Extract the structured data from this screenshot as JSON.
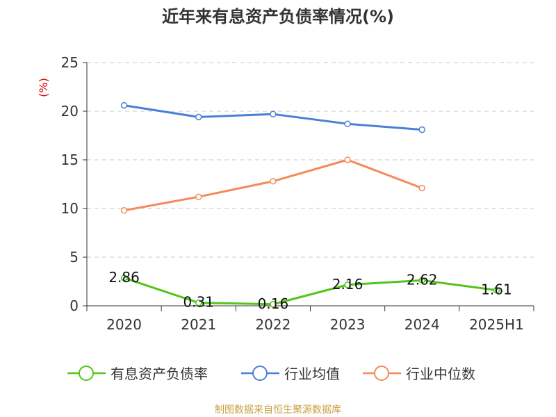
{
  "chart_data": {
    "type": "line",
    "title": "近年来有息资产负债率情况(%)",
    "unit_label": "(%)",
    "categories": [
      "2020",
      "2021",
      "2022",
      "2023",
      "2024",
      "2025H1"
    ],
    "ylim": [
      0,
      25
    ],
    "yticks": [
      "0",
      "5",
      "10",
      "15",
      "20",
      "25"
    ],
    "grid": true,
    "legend_position": "bottom",
    "series": [
      {
        "name": "有息资产负债率",
        "color": "#52c41a",
        "values": [
          2.86,
          0.31,
          0.16,
          2.16,
          2.62,
          1.61
        ],
        "labels": [
          "2.86",
          "0.31",
          "0.16",
          "2.16",
          "2.62",
          "1.61"
        ]
      },
      {
        "name": "行业均值",
        "color": "#4a7fd8",
        "values": [
          20.6,
          19.4,
          19.7,
          18.7,
          18.1,
          null
        ]
      },
      {
        "name": "行业中位数",
        "color": "#f5895a",
        "values": [
          9.8,
          11.2,
          12.8,
          15.0,
          12.1,
          null
        ]
      }
    ],
    "source": "制图数据来自恒生聚源数据库"
  }
}
